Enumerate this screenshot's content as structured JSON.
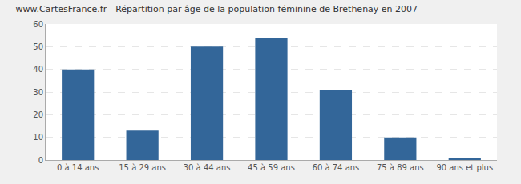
{
  "chart_data": {
    "type": "bar",
    "title": "www.CartesFrance.fr - Répartition par âge de la population féminine de Brethenay en 2007",
    "categories": [
      "0 à 14 ans",
      "15 à 29 ans",
      "30 à 44 ans",
      "45 à 59 ans",
      "60 à 74 ans",
      "75 à 89 ans",
      "90 ans et plus"
    ],
    "values": [
      40,
      13,
      50,
      54,
      31,
      10,
      0.5
    ],
    "color": "#336699",
    "ylim": [
      0,
      60
    ],
    "yticks": [
      0,
      10,
      20,
      30,
      40,
      50,
      60
    ],
    "grid": true
  }
}
